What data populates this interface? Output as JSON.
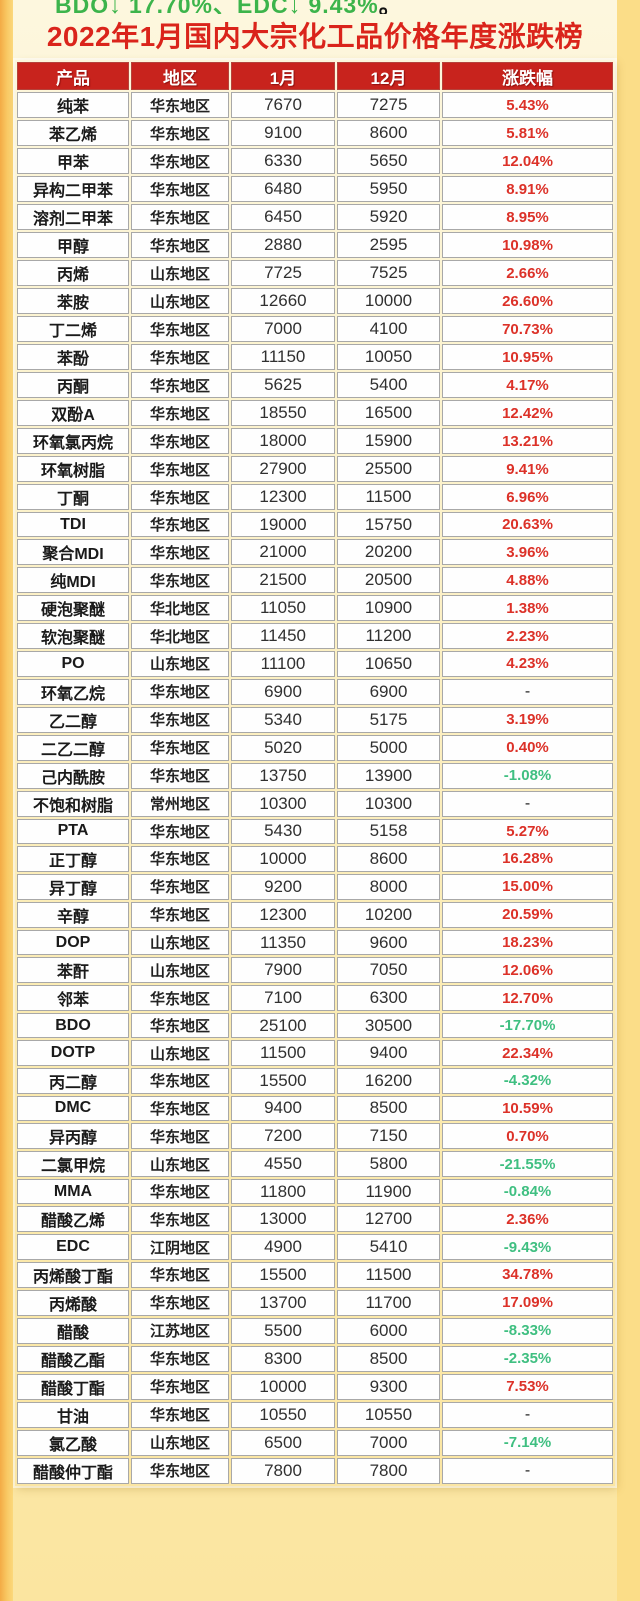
{
  "note": {
    "text": "BDO↓ 17.70%、EDC↓ 9.43%",
    "period": "。"
  },
  "colors": {
    "title_red": "#da241b",
    "header_bg": "#c8231d",
    "positive_red": "#dc3128",
    "negative_green": "#3fbf81",
    "note_green": "#3cb44b",
    "page_yellow": "#fbdd88",
    "panel_cream_top": "#fdf7de",
    "panel_cream_bottom": "#fbe5a0"
  },
  "chart_data": {
    "type": "table",
    "title": "2022年1月国内大宗化工品价格年度涨跌榜",
    "columns": [
      "产品",
      "地区",
      "1月",
      "12月",
      "涨跌幅"
    ],
    "rows": [
      [
        "纯苯",
        "华东地区",
        7670,
        7275,
        "5.43%"
      ],
      [
        "苯乙烯",
        "华东地区",
        9100,
        8600,
        "5.81%"
      ],
      [
        "甲苯",
        "华东地区",
        6330,
        5650,
        "12.04%"
      ],
      [
        "异构二甲苯",
        "华东地区",
        6480,
        5950,
        "8.91%"
      ],
      [
        "溶剂二甲苯",
        "华东地区",
        6450,
        5920,
        "8.95%"
      ],
      [
        "甲醇",
        "华东地区",
        2880,
        2595,
        "10.98%"
      ],
      [
        "丙烯",
        "山东地区",
        7725,
        7525,
        "2.66%"
      ],
      [
        "苯胺",
        "山东地区",
        12660,
        10000,
        "26.60%"
      ],
      [
        "丁二烯",
        "华东地区",
        7000,
        4100,
        "70.73%"
      ],
      [
        "苯酚",
        "华东地区",
        11150,
        10050,
        "10.95%"
      ],
      [
        "丙酮",
        "华东地区",
        5625,
        5400,
        "4.17%"
      ],
      [
        "双酚A",
        "华东地区",
        18550,
        16500,
        "12.42%"
      ],
      [
        "环氧氯丙烷",
        "华东地区",
        18000,
        15900,
        "13.21%"
      ],
      [
        "环氧树脂",
        "华东地区",
        27900,
        25500,
        "9.41%"
      ],
      [
        "丁酮",
        "华东地区",
        12300,
        11500,
        "6.96%"
      ],
      [
        "TDI",
        "华东地区",
        19000,
        15750,
        "20.63%"
      ],
      [
        "聚合MDI",
        "华东地区",
        21000,
        20200,
        "3.96%"
      ],
      [
        "纯MDI",
        "华东地区",
        21500,
        20500,
        "4.88%"
      ],
      [
        "硬泡聚醚",
        "华北地区",
        11050,
        10900,
        "1.38%"
      ],
      [
        "软泡聚醚",
        "华北地区",
        11450,
        11200,
        "2.23%"
      ],
      [
        "PO",
        "山东地区",
        11100,
        10650,
        "4.23%"
      ],
      [
        "环氧乙烷",
        "华东地区",
        6900,
        6900,
        "-"
      ],
      [
        "乙二醇",
        "华东地区",
        5340,
        5175,
        "3.19%"
      ],
      [
        "二乙二醇",
        "华东地区",
        5020,
        5000,
        "0.40%"
      ],
      [
        "己内酰胺",
        "华东地区",
        13750,
        13900,
        "-1.08%"
      ],
      [
        "不饱和树脂",
        "常州地区",
        10300,
        10300,
        "-"
      ],
      [
        "PTA",
        "华东地区",
        5430,
        5158,
        "5.27%"
      ],
      [
        "正丁醇",
        "华东地区",
        10000,
        8600,
        "16.28%"
      ],
      [
        "异丁醇",
        "华东地区",
        9200,
        8000,
        "15.00%"
      ],
      [
        "辛醇",
        "华东地区",
        12300,
        10200,
        "20.59%"
      ],
      [
        "DOP",
        "山东地区",
        11350,
        9600,
        "18.23%"
      ],
      [
        "苯酐",
        "山东地区",
        7900,
        7050,
        "12.06%"
      ],
      [
        "邻苯",
        "华东地区",
        7100,
        6300,
        "12.70%"
      ],
      [
        "BDO",
        "华东地区",
        25100,
        30500,
        "-17.70%"
      ],
      [
        "DOTP",
        "山东地区",
        11500,
        9400,
        "22.34%"
      ],
      [
        "丙二醇",
        "华东地区",
        15500,
        16200,
        "-4.32%"
      ],
      [
        "DMC",
        "华东地区",
        9400,
        8500,
        "10.59%"
      ],
      [
        "异丙醇",
        "华东地区",
        7200,
        7150,
        "0.70%"
      ],
      [
        "二氯甲烷",
        "山东地区",
        4550,
        5800,
        "-21.55%"
      ],
      [
        "MMA",
        "华东地区",
        11800,
        11900,
        "-0.84%"
      ],
      [
        "醋酸乙烯",
        "华东地区",
        13000,
        12700,
        "2.36%"
      ],
      [
        "EDC",
        "江阴地区",
        4900,
        5410,
        "-9.43%"
      ],
      [
        "丙烯酸丁酯",
        "华东地区",
        15500,
        11500,
        "34.78%"
      ],
      [
        "丙烯酸",
        "华东地区",
        13700,
        11700,
        "17.09%"
      ],
      [
        "醋酸",
        "江苏地区",
        5500,
        6000,
        "-8.33%"
      ],
      [
        "醋酸乙酯",
        "华东地区",
        8300,
        8500,
        "-2.35%"
      ],
      [
        "醋酸丁酯",
        "华东地区",
        10000,
        9300,
        "7.53%"
      ],
      [
        "甘油",
        "华东地区",
        10550,
        10550,
        "-"
      ],
      [
        "氯乙酸",
        "山东地区",
        6500,
        7000,
        "-7.14%"
      ],
      [
        "醋酸仲丁酯",
        "华东地区",
        7800,
        7800,
        "-"
      ]
    ]
  }
}
